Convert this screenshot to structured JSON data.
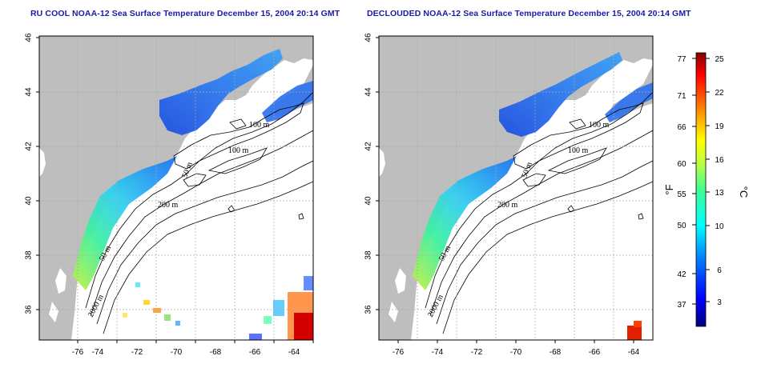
{
  "maps": [
    {
      "title": "RU COOL NOAA-12 Sea Surface Temperature December 15, 2004 20:14 GMT",
      "lat_ticks": [
        "46",
        "44",
        "42",
        "40",
        "38",
        "36"
      ],
      "lon_ticks": [
        "-76",
        "-74",
        "-72",
        "-70",
        "-68",
        "-66",
        "-64"
      ],
      "contour_labels": [
        "100 m",
        "100 m",
        "50 m",
        "200 m",
        "50 m",
        "2000 m"
      ]
    },
    {
      "title": "DECLOUDED NOAA-12 Sea Surface Temperature December 15, 2004 20:14 GMT",
      "lat_ticks": [
        "46",
        "44",
        "42",
        "40",
        "38",
        "36"
      ],
      "lon_ticks": [
        "-76",
        "-74",
        "-72",
        "-70",
        "-68",
        "-66",
        "-64"
      ],
      "contour_labels": [
        "100 m",
        "100 m",
        "50 m",
        "200 m",
        "50 m",
        "2000 m"
      ]
    }
  ],
  "colorbar": {
    "fahrenheit_label": "°F",
    "celsius_label": "°C",
    "fahrenheit_ticks": [
      "77",
      "71",
      "66",
      "60",
      "55",
      "50",
      "42",
      "37"
    ],
    "celsius_ticks": [
      "25",
      "22",
      "19",
      "16",
      "13",
      "10",
      "6",
      "3"
    ],
    "colors": [
      "#000080",
      "#0000ff",
      "#0080ff",
      "#00ffff",
      "#40ff90",
      "#c0ff40",
      "#ffff00",
      "#ff8000",
      "#ff0000",
      "#800000"
    ]
  },
  "colors": {
    "land": "#bebebe",
    "background": "#ffffff",
    "title": "#1a1aa6"
  }
}
